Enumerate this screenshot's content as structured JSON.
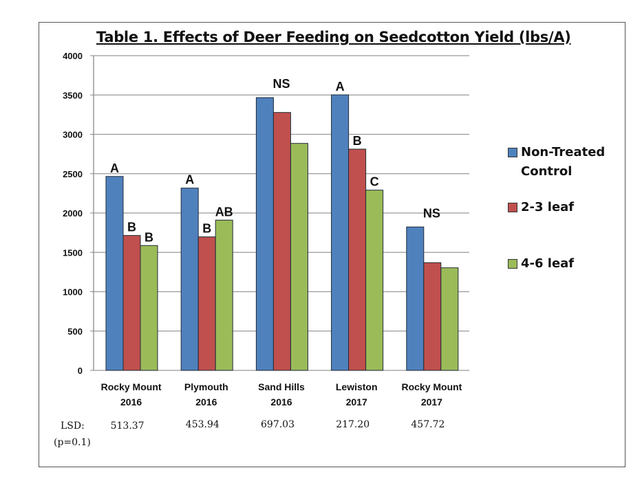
{
  "chart_data": {
    "type": "bar",
    "title": "Table 1. Effects of Deer Feeding on Seedcotton Yield (lbs/A)",
    "categories": [
      [
        "Rocky Mount",
        "2016"
      ],
      [
        "Plymouth",
        "2016"
      ],
      [
        "Sand Hills",
        "2016"
      ],
      [
        "Lewiston",
        "2017"
      ],
      [
        "Rocky Mount",
        "2017"
      ]
    ],
    "ylim": [
      0,
      4000
    ],
    "yticks": [
      0,
      500,
      1000,
      1500,
      2000,
      2500,
      3000,
      3500,
      4000
    ],
    "grid": true,
    "legend_position": "right",
    "series": [
      {
        "name": "Non-Treated Control",
        "name_lines": [
          "Non-Treated",
          "Control"
        ],
        "color": "#4F81BD",
        "values": [
          2465,
          2317,
          3467,
          3502,
          1823
        ]
      },
      {
        "name": "2-3 leaf",
        "name_lines": [
          "2-3 leaf"
        ],
        "color": "#C0504D",
        "values": [
          1715,
          1697,
          3278,
          2812,
          1369
        ]
      },
      {
        "name": "4-6 leaf",
        "name_lines": [
          "4-6 leaf"
        ],
        "color": "#9BBB59",
        "values": [
          1587,
          1910,
          2885,
          2291,
          1304
        ]
      }
    ],
    "annotations": [
      {
        "group": 0,
        "labels": [
          "A",
          "B",
          "B"
        ]
      },
      {
        "group": 1,
        "labels": [
          "A",
          "B",
          "AB"
        ]
      },
      {
        "group": 2,
        "labels": [
          "NS"
        ]
      },
      {
        "group": 3,
        "labels": [
          "A",
          "B",
          "C"
        ]
      },
      {
        "group": 4,
        "labels": [
          "NS"
        ]
      }
    ],
    "lsd": {
      "label": "LSD:",
      "sublabel": "(p=0.1)",
      "values": [
        "513.37",
        "453.94",
        "697.03",
        "217.20",
        "457.72"
      ]
    }
  }
}
